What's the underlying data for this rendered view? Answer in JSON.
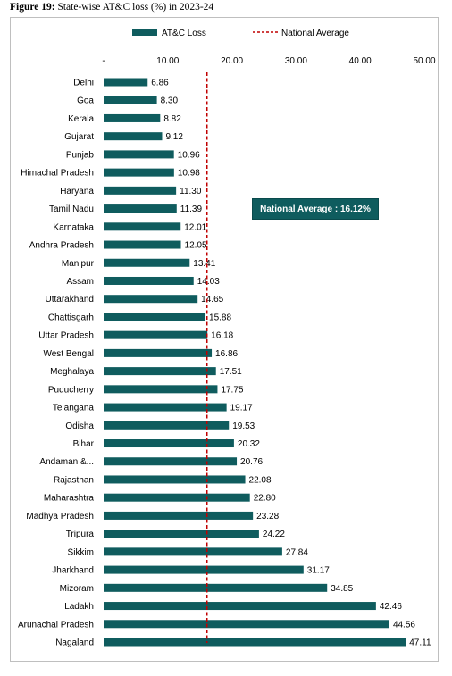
{
  "figure": {
    "label": "Figure 19:",
    "caption": "State-wise AT&C loss (%) in 2023-24"
  },
  "colors": {
    "bar": "#0f5c5e",
    "average_line": "#c00000",
    "callout_bg": "#0f5c5e"
  },
  "chart_data": {
    "type": "bar",
    "orientation": "horizontal",
    "title": "",
    "xlabel": "",
    "ylabel": "",
    "xlim": [
      0,
      50
    ],
    "x_ticks": [
      "-",
      "10.00",
      "20.00",
      "30.00",
      "40.00",
      "50.00"
    ],
    "tick_position": "top",
    "legend": {
      "placement": "top",
      "bar_label": "AT&C Loss",
      "line_label": "National Average"
    },
    "average_value": 16.12,
    "annotation": "National Average : 16.12%",
    "categories": [
      "Delhi",
      "Goa",
      "Kerala",
      "Gujarat",
      "Punjab",
      "Himachal Pradesh",
      "Haryana",
      "Tamil Nadu",
      "Karnataka",
      "Andhra Pradesh",
      "Manipur",
      "Assam",
      "Uttarakhand",
      "Chattisgarh",
      "Uttar Pradesh",
      "West Bengal",
      "Meghalaya",
      "Puducherry",
      "Telangana",
      "Odisha",
      "Bihar",
      "Andaman &...",
      "Rajasthan",
      "Maharashtra",
      "Madhya Pradesh",
      "Tripura",
      "Sikkim",
      "Jharkhand",
      "Mizoram",
      "Ladakh",
      "Arunachal Pradesh",
      "Nagaland"
    ],
    "values": [
      6.86,
      8.3,
      8.82,
      9.12,
      10.96,
      10.98,
      11.3,
      11.39,
      12.01,
      12.05,
      13.41,
      14.03,
      14.65,
      15.88,
      16.18,
      16.86,
      17.51,
      17.75,
      19.17,
      19.53,
      20.32,
      20.76,
      22.08,
      22.8,
      23.28,
      24.22,
      27.84,
      31.17,
      34.85,
      42.46,
      44.56,
      47.11
    ],
    "value_labels": [
      "6.86",
      "8.30",
      "8.82",
      "9.12",
      "10.96",
      "10.98",
      "11.30",
      "11.39",
      "12.01",
      "12.05",
      "13.41",
      "14.03",
      "14.65",
      "15.88",
      "16.18",
      "16.86",
      "17.51",
      "17.75",
      "19.17",
      "19.53",
      "20.32",
      "20.76",
      "22.08",
      "22.80",
      "23.28",
      "24.22",
      "27.84",
      "31.17",
      "34.85",
      "42.46",
      "44.56",
      "47.11"
    ]
  }
}
